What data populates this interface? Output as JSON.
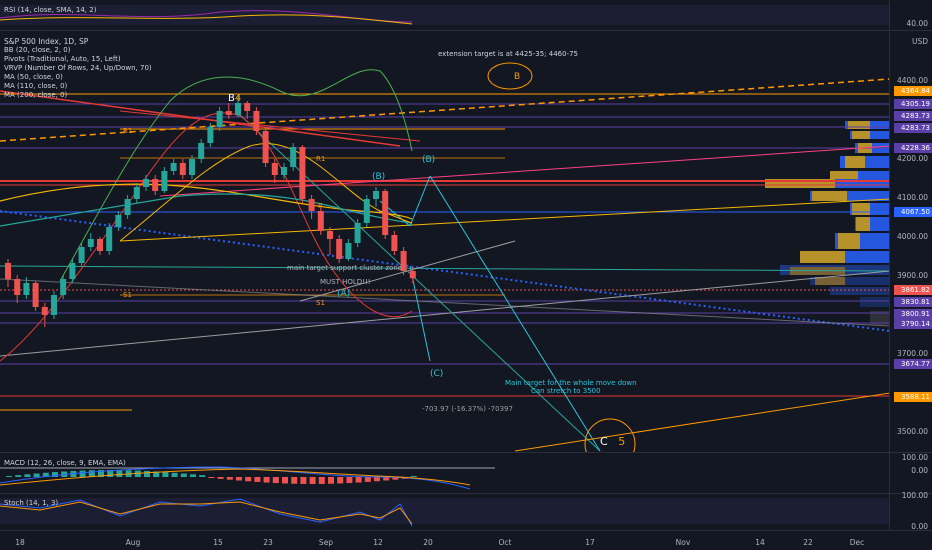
{
  "colors": {
    "up": "#26a69a",
    "down": "#ef5350",
    "bg": "#131722",
    "grid": "#2a2e39",
    "text": "#b2b5be"
  },
  "rsi_pane": {
    "label": "RSI (14, close, SMA, 14, 2)",
    "tick": "40.00"
  },
  "main_pane": {
    "currency": "USD",
    "legend": [
      "S&P 500 Index, 1D, SP",
      "BB (20, close, 2, 0)",
      "Pivots (Traditional, Auto, 15, Left)",
      "VRVP (Number Of Rows, 24, Up/Down, 70)",
      "MA (50, close, 0)",
      "MA (110, close, 0)",
      "MA (200, close, 0)"
    ],
    "y_ticks": [
      "4400.00",
      "4200.00",
      "4100.00",
      "4000.00",
      "3900.00",
      "3700.00",
      "3500.00"
    ],
    "price_labels": [
      {
        "text": "4364.84",
        "color": "#ff9800"
      },
      {
        "text": "4305.19",
        "color": "#5b3fa8"
      },
      {
        "text": "4283.73",
        "color": "#5b3fa8"
      },
      {
        "text": "4283.73",
        "color": "#5b3fa8"
      },
      {
        "text": "4228.36",
        "color": "#5b3fa8"
      },
      {
        "text": "4067.50",
        "color": "#2962ff"
      },
      {
        "text": "3861.82",
        "color": "#ef5350"
      },
      {
        "text": "3830.81",
        "color": "#5b3fa8"
      },
      {
        "text": "3800.91",
        "color": "#5b3fa8"
      },
      {
        "text": "3790.14",
        "color": "#5b3fa8"
      },
      {
        "text": "3674.77",
        "color": "#5b3fa8"
      },
      {
        "text": "3588.11",
        "color": "#ff9800"
      }
    ],
    "annotations": {
      "extension": "extension target is at 4425-35; 4460-75",
      "b_circle": "B",
      "b4": "B",
      "b4_num": "4",
      "R1_left": "R1",
      "R1": "R1",
      "P": "P",
      "S1_left": "S1",
      "S1": "S1",
      "wave_B": "(B)",
      "wave_b": "(B)",
      "wave_A": "(A)",
      "wave_C": "(C)",
      "main_target": "main target support cluster zone",
      "must_hold": "MUST HOLD!!!",
      "main_target_whole": "Main target for the whole move down",
      "can_stretch": "Can stretch to 3500",
      "measure": "-703.97 (-16.37%) -70397",
      "c5_c": "C",
      "c5_5": "5"
    }
  },
  "macd_pane": {
    "label": "MACD (12, 26, close, 9, EMA, EMA)",
    "ticks": [
      "100.00",
      "0.00"
    ]
  },
  "stoch_pane": {
    "label": "Stoch (14, 1, 3)",
    "ticks": [
      "100.00",
      "0.00"
    ]
  },
  "x_axis": [
    "18",
    "Aug",
    "15",
    "23",
    "Sep",
    "12",
    "20",
    "Oct",
    "17",
    "Nov",
    "14",
    "22",
    "Dec"
  ],
  "chart_data": {
    "type": "candlestick",
    "title": "S&P 500 Index, 1D, SP",
    "ylim": [
      3450,
      4450
    ],
    "candles": [
      [
        3900,
        3860,
        3910,
        3840
      ],
      [
        3860,
        3820,
        3870,
        3800
      ],
      [
        3820,
        3850,
        3865,
        3810
      ],
      [
        3850,
        3790,
        3855,
        3780
      ],
      [
        3790,
        3770,
        3800,
        3740
      ],
      [
        3770,
        3820,
        3830,
        3760
      ],
      [
        3820,
        3860,
        3870,
        3810
      ],
      [
        3860,
        3900,
        3910,
        3850
      ],
      [
        3900,
        3940,
        3950,
        3890
      ],
      [
        3940,
        3960,
        3975,
        3930
      ],
      [
        3960,
        3930,
        3965,
        3920
      ],
      [
        3930,
        3990,
        4000,
        3920
      ],
      [
        3990,
        4020,
        4030,
        3980
      ],
      [
        4020,
        4060,
        4070,
        4010
      ],
      [
        4060,
        4090,
        4100,
        4050
      ],
      [
        4090,
        4110,
        4120,
        4080
      ],
      [
        4110,
        4080,
        4120,
        4070
      ],
      [
        4080,
        4130,
        4140,
        4075
      ],
      [
        4130,
        4150,
        4160,
        4120
      ],
      [
        4150,
        4120,
        4160,
        4110
      ],
      [
        4120,
        4160,
        4170,
        4110
      ],
      [
        4160,
        4200,
        4210,
        4150
      ],
      [
        4200,
        4240,
        4250,
        4190
      ],
      [
        4240,
        4280,
        4290,
        4230
      ],
      [
        4280,
        4270,
        4300,
        4260
      ],
      [
        4270,
        4300,
        4320,
        4265
      ],
      [
        4300,
        4280,
        4305,
        4260
      ],
      [
        4280,
        4230,
        4290,
        4220
      ],
      [
        4230,
        4150,
        4240,
        4140
      ],
      [
        4150,
        4120,
        4160,
        4100
      ],
      [
        4120,
        4140,
        4150,
        4110
      ],
      [
        4140,
        4190,
        4200,
        4130
      ],
      [
        4190,
        4060,
        4195,
        4050
      ],
      [
        4060,
        4030,
        4070,
        4010
      ],
      [
        4030,
        3980,
        4040,
        3970
      ],
      [
        3980,
        3960,
        3990,
        3920
      ],
      [
        3960,
        3910,
        3970,
        3900
      ],
      [
        3910,
        3950,
        3960,
        3905
      ],
      [
        3950,
        4000,
        4010,
        3940
      ],
      [
        4000,
        4060,
        4070,
        3990
      ],
      [
        4060,
        4080,
        4090,
        4040
      ],
      [
        4080,
        3970,
        4085,
        3960
      ],
      [
        3970,
        3930,
        3980,
        3920
      ],
      [
        3930,
        3880,
        3940,
        3870
      ],
      [
        3880,
        3862,
        3890,
        3850
      ]
    ]
  }
}
